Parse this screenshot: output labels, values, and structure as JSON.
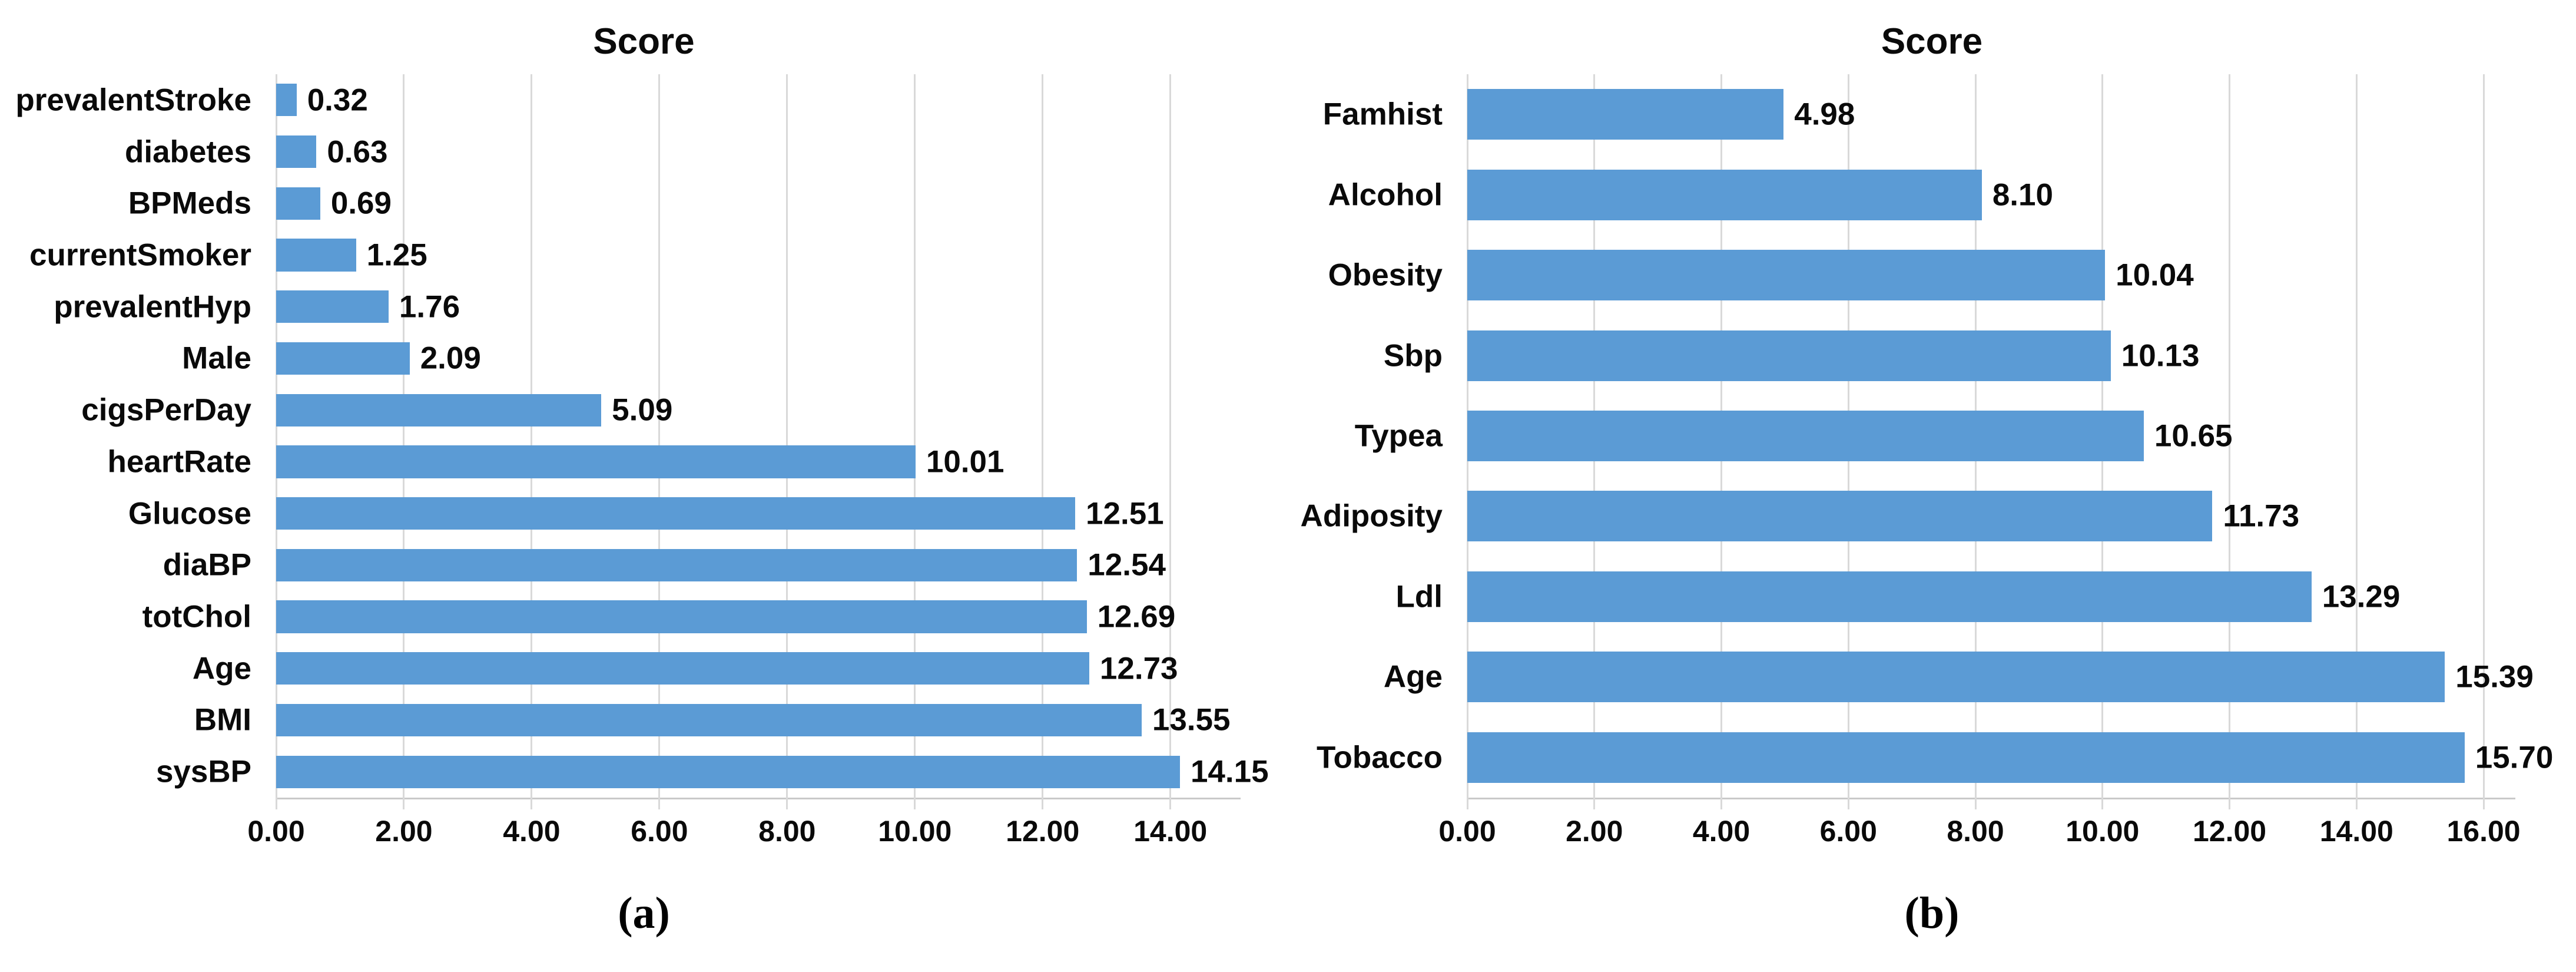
{
  "figure": {
    "captions": {
      "a": "(a)",
      "b": "(b)"
    }
  },
  "chart_data": [
    {
      "type": "bar",
      "orientation": "horizontal",
      "panel": "a",
      "title": "Score",
      "categories": [
        "prevalentStroke",
        "diabetes",
        "BPMeds",
        "currentSmoker",
        "prevalentHyp",
        "Male",
        "cigsPerDay",
        "heartRate",
        "Glucose",
        "diaBP",
        "totChol",
        "Age",
        "BMI",
        "sysBP"
      ],
      "values": [
        0.32,
        0.63,
        0.69,
        1.25,
        1.76,
        2.09,
        5.09,
        10.01,
        12.51,
        12.54,
        12.69,
        12.73,
        13.55,
        14.15
      ],
      "value_labels": [
        "0.32",
        "0.63",
        "0.69",
        "1.25",
        "1.76",
        "2.09",
        "5.09",
        "10.01",
        "12.51",
        "12.54",
        "12.69",
        "12.73",
        "13.55",
        "14.15"
      ],
      "x_tick_values": [
        0,
        2,
        4,
        6,
        8,
        10,
        12,
        14
      ],
      "x_tick_labels": [
        "0.00",
        "2.00",
        "4.00",
        "6.00",
        "8.00",
        "10.00",
        "12.00",
        "14.00"
      ],
      "xlim": [
        0,
        15.1
      ],
      "grid": true,
      "legend_position": "none",
      "bar_color": "#5B9BD5",
      "grid_color": "#D9D9D9",
      "text_color": "#0A0A0A"
    },
    {
      "type": "bar",
      "orientation": "horizontal",
      "panel": "b",
      "title": "Score",
      "categories": [
        "Famhist",
        "Alcohol",
        "Obesity",
        "Sbp",
        "Typea",
        "Adiposity",
        "Ldl",
        "Age",
        "Tobacco"
      ],
      "values": [
        4.98,
        8.1,
        10.04,
        10.13,
        10.65,
        11.73,
        13.29,
        15.39,
        15.7
      ],
      "value_labels": [
        "4.98",
        "8.10",
        "10.04",
        "10.13",
        "10.65",
        "11.73",
        "13.29",
        "15.39",
        "15.70"
      ],
      "x_tick_values": [
        0,
        2,
        4,
        6,
        8,
        10,
        12,
        14,
        16
      ],
      "x_tick_labels": [
        "0.00",
        "2.00",
        "4.00",
        "6.00",
        "8.00",
        "10.00",
        "12.00",
        "14.00",
        "16.00"
      ],
      "xlim": [
        0,
        16.5
      ],
      "grid": true,
      "legend_position": "none",
      "bar_color": "#5B9BD5",
      "grid_color": "#D9D9D9",
      "text_color": "#0A0A0A"
    }
  ]
}
